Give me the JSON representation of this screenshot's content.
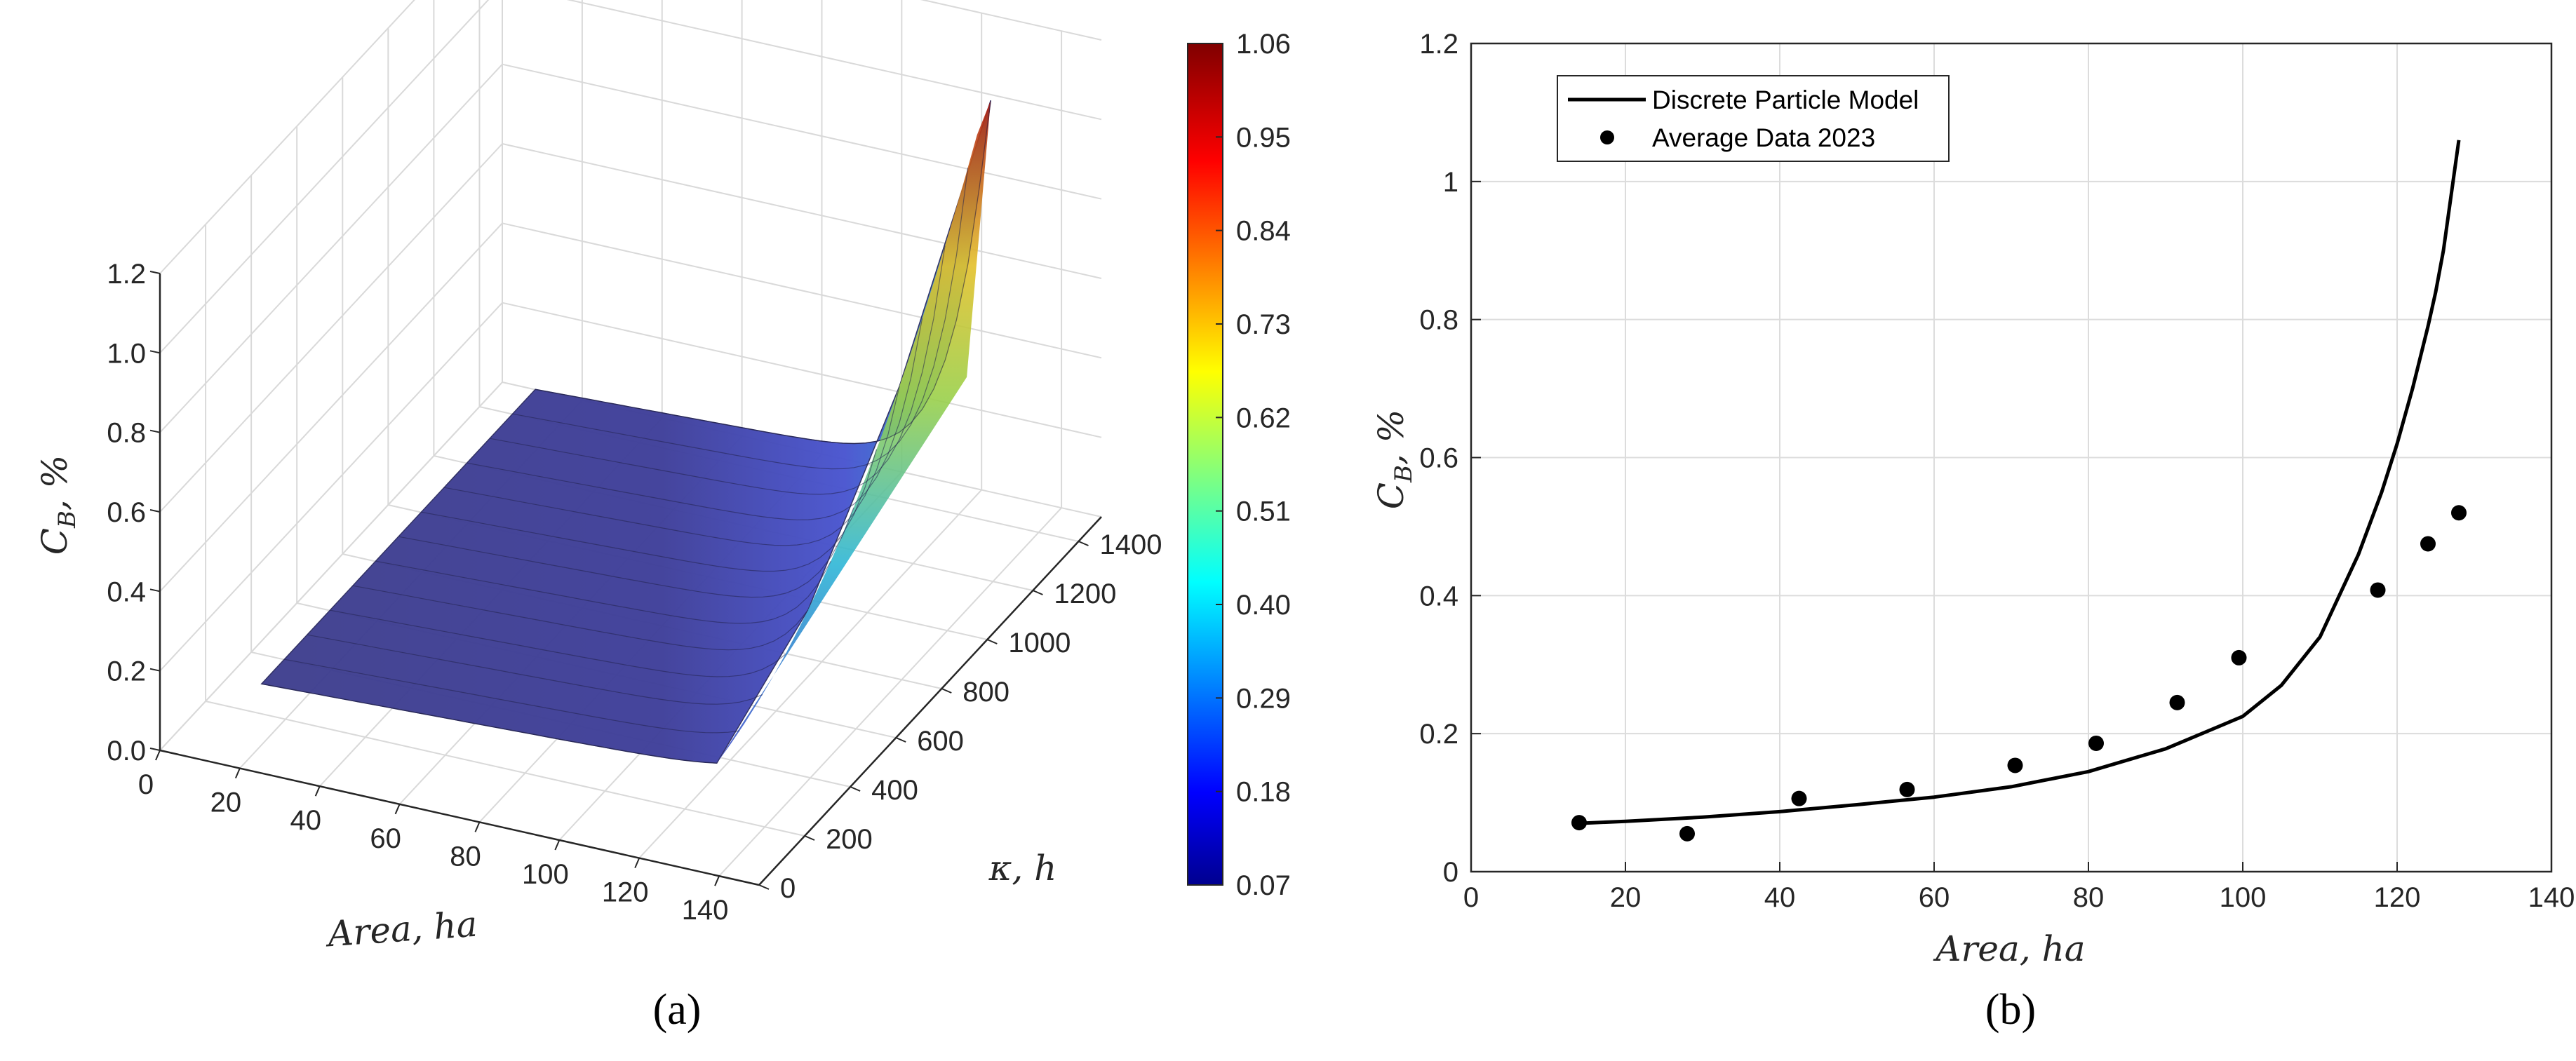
{
  "chart_data": [
    {
      "type": "surface",
      "caption": "(a)",
      "xlabel": "Area, ha",
      "ylabel": "κ, h",
      "zlabel": "C_B, %",
      "zlabel_main": "C",
      "zlabel_sub": "B",
      "zlabel_unit": ", %",
      "xlim": [
        0,
        150
      ],
      "ylim": [
        0,
        1500
      ],
      "zlim": [
        0,
        1.2
      ],
      "x_ticks": [
        "0",
        "20",
        "40",
        "60",
        "80",
        "100",
        "120",
        "140"
      ],
      "y_ticks": [
        "0",
        "200",
        "400",
        "600",
        "800",
        "1000",
        "1200",
        "1400"
      ],
      "z_ticks": [
        "0.0",
        "0.2",
        "0.4",
        "0.6",
        "0.8",
        "1.0",
        "1.2"
      ],
      "colormap": "jet",
      "colorbar_ticks": [
        "1.06",
        "0.95",
        "0.84",
        "0.73",
        "0.62",
        "0.51",
        "0.40",
        "0.29",
        "0.18",
        "0.07"
      ],
      "colorbar_range": [
        0.07,
        1.06
      ],
      "surface_note": "C_B rises with Area toward 1.06 at Area≈128, κ≈1400; near-flat ~0.07 elsewhere"
    },
    {
      "type": "line+scatter",
      "caption": "(b)",
      "xlabel": "Area, ha",
      "ylabel": "C_B, %",
      "ylabel_main": "C",
      "ylabel_sub": "B",
      "ylabel_unit": ", %",
      "xlim": [
        0,
        140
      ],
      "ylim": [
        0,
        1.2
      ],
      "x_ticks": [
        0,
        20,
        40,
        60,
        80,
        100,
        120,
        140
      ],
      "y_ticks": [
        0,
        0.2,
        0.4,
        0.6,
        0.8,
        1,
        1.2
      ],
      "grid": true,
      "legend_position": "top-left",
      "series": [
        {
          "name": "Discrete Particle Model",
          "kind": "line",
          "color": "#000000",
          "x": [
            14,
            20,
            30,
            40,
            50,
            60,
            70,
            80,
            90,
            100,
            105,
            110,
            115,
            118,
            120,
            122,
            124,
            125,
            126,
            127,
            128
          ],
          "y": [
            0.07,
            0.073,
            0.079,
            0.087,
            0.097,
            0.108,
            0.123,
            0.145,
            0.178,
            0.225,
            0.27,
            0.34,
            0.46,
            0.55,
            0.62,
            0.7,
            0.79,
            0.84,
            0.9,
            0.98,
            1.06
          ]
        },
        {
          "name": "Average Data 2023",
          "kind": "scatter",
          "color": "#000000",
          "x": [
            14,
            28,
            42.5,
            56.5,
            70.5,
            81,
            91.5,
            99.5,
            117.5,
            124,
            128
          ],
          "y": [
            0.071,
            0.055,
            0.106,
            0.119,
            0.154,
            0.186,
            0.245,
            0.31,
            0.408,
            0.475,
            0.52
          ]
        }
      ]
    }
  ]
}
